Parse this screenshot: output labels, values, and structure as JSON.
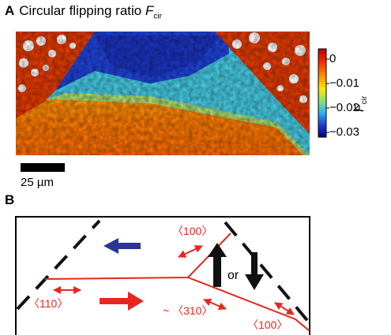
{
  "panel_a": {
    "letter": "A",
    "title_text": "Circular flipping ratio ",
    "title_symbol": "F",
    "title_subscript": "cir",
    "scale_bar_label": "25 µm",
    "colorbar": {
      "ticks": [
        "0",
        "−0.01",
        "−0.02",
        "−0.03"
      ],
      "symbol": "F",
      "subscript": "cir",
      "colors": [
        "#ffffff",
        "#b40000",
        "#ff6a00",
        "#ffd400",
        "#7fe27f",
        "#2ab7f0",
        "#1e3ed8",
        "#000080"
      ]
    }
  },
  "panel_b": {
    "letter": "B",
    "labels": {
      "top_100": "〈100〉",
      "left_110": "〈110〉",
      "mid_310": "~ 〈310〉",
      "bottom_100": "〈100〉",
      "or": "or"
    },
    "colors": {
      "wall": "#e8251f",
      "blue_arrow": "#2b3594",
      "black": "#111111"
    }
  }
}
